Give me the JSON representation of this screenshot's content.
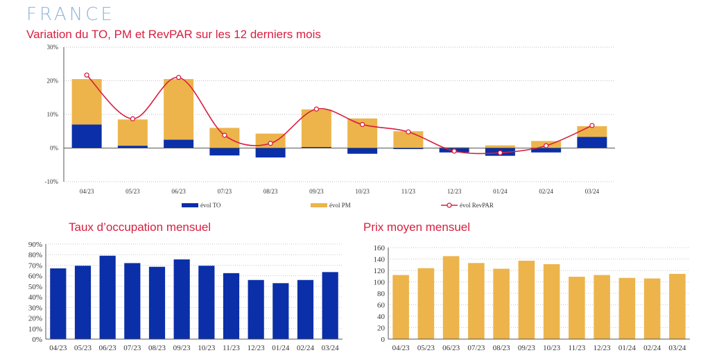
{
  "header": {
    "country": "FRANCE",
    "title": "Variation du TO, PM et RevPAR sur les 12 derniers mois"
  },
  "colors": {
    "to": "#0a2fa8",
    "pm": "#ecb44b",
    "revpar": "#d81e3f",
    "title": "#d81e3f",
    "country": "#8fb4dc"
  },
  "chart_data": [
    {
      "type": "bar",
      "title": "Variation du TO, PM et RevPAR sur les 12 derniers mois",
      "categories": [
        "04/23",
        "05/23",
        "06/23",
        "07/23",
        "08/23",
        "09/23",
        "10/23",
        "11/23",
        "12/23",
        "01/24",
        "02/24",
        "03/24"
      ],
      "series": [
        {
          "name": "évol TO",
          "type": "bar",
          "values": [
            7.0,
            0.7,
            2.5,
            -2.2,
            -2.8,
            0.3,
            -1.7,
            -0.3,
            -1.3,
            -2.3,
            -1.3,
            3.3
          ]
        },
        {
          "name": "évol PM",
          "type": "bar",
          "values": [
            13.5,
            7.8,
            18.0,
            6.0,
            4.3,
            11.2,
            8.8,
            5.0,
            0.3,
            0.8,
            2.1,
            3.2
          ]
        },
        {
          "name": "évol RevPAR",
          "type": "line",
          "values": [
            21.7,
            8.7,
            21.0,
            3.8,
            1.4,
            11.6,
            7.0,
            4.8,
            -0.9,
            -1.4,
            0.7,
            6.7
          ]
        }
      ],
      "ylim": [
        -10,
        30
      ],
      "yticks": [
        "-10%",
        "0%",
        "10%",
        "20%",
        "30%"
      ],
      "yticks_values": [
        -10,
        0,
        10,
        20,
        30
      ],
      "grid": true,
      "legend": "bottom"
    },
    {
      "type": "bar",
      "title": "Taux d’occupation mensuel",
      "categories": [
        "04/23",
        "05/23",
        "06/23",
        "07/23",
        "08/23",
        "09/23",
        "10/23",
        "11/23",
        "12/23",
        "01/24",
        "02/24",
        "03/24"
      ],
      "values": [
        67,
        69.5,
        79,
        72,
        68.5,
        75.5,
        69.5,
        62.5,
        56,
        53,
        56,
        63.5
      ],
      "ylim": [
        0,
        90
      ],
      "yticks": [
        "0%",
        "10%",
        "20%",
        "30%",
        "40%",
        "50%",
        "60%",
        "70%",
        "80%",
        "90%"
      ],
      "yticks_values": [
        0,
        10,
        20,
        30,
        40,
        50,
        60,
        70,
        80,
        90
      ],
      "grid": true
    },
    {
      "type": "bar",
      "title": "Prix moyen mensuel",
      "categories": [
        "04/23",
        "05/23",
        "06/23",
        "07/23",
        "08/23",
        "09/23",
        "10/23",
        "11/23",
        "12/23",
        "01/24",
        "02/24",
        "03/24"
      ],
      "values": [
        112,
        124,
        145,
        133,
        123,
        137,
        131,
        109,
        112,
        107,
        106,
        114
      ],
      "ylim": [
        0,
        160
      ],
      "yticks": [
        "0",
        "20",
        "40",
        "60",
        "80",
        "100",
        "120",
        "140",
        "160"
      ],
      "yticks_values": [
        0,
        20,
        40,
        60,
        80,
        100,
        120,
        140,
        160
      ],
      "grid": true
    }
  ]
}
